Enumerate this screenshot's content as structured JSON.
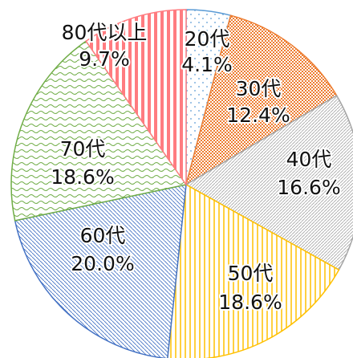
{
  "chart_data": {
    "type": "pie",
    "categories": [
      "20代",
      "30代",
      "40代",
      "50代",
      "60代",
      "70代",
      "80代以上"
    ],
    "values": [
      4.1,
      12.4,
      16.6,
      18.6,
      20.0,
      18.6,
      9.7
    ],
    "value_labels": [
      "4.1%",
      "12.4%",
      "16.6%",
      "18.6%",
      "20.0%",
      "18.6%",
      "9.7%"
    ],
    "colors": [
      "#5b9bd5",
      "#ed7d31",
      "#a5a5a5",
      "#ffc000",
      "#4472c4",
      "#70ad47",
      "#ff7c80"
    ]
  }
}
